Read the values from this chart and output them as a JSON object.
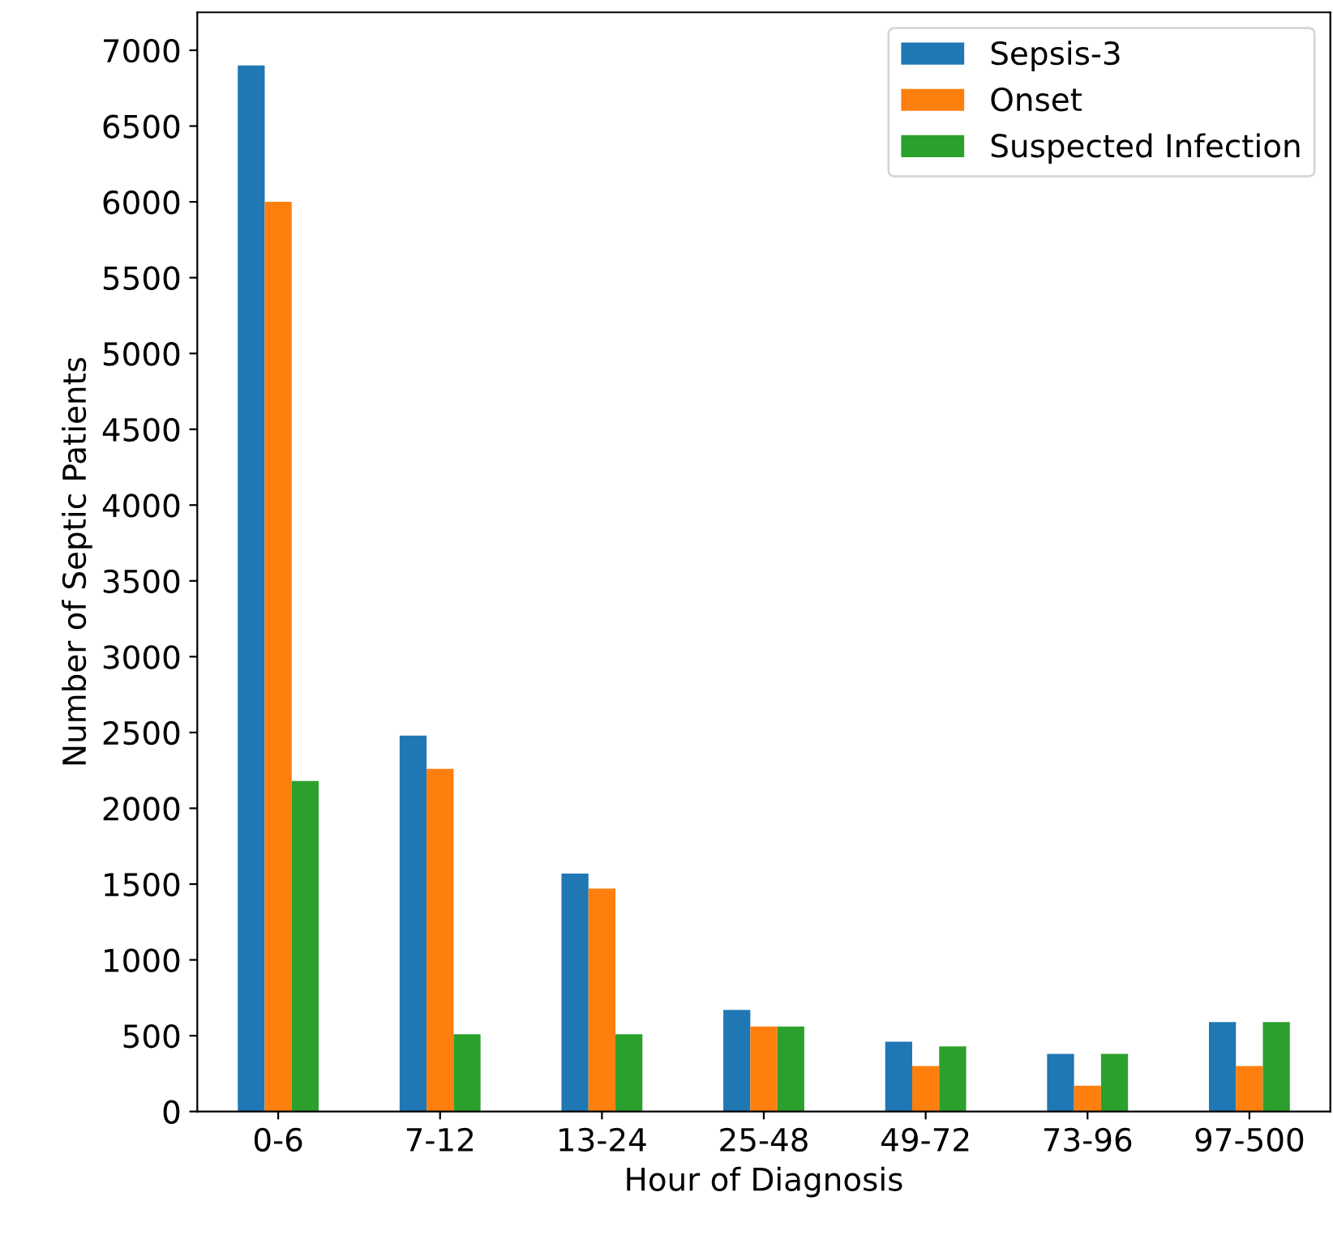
{
  "chart_data": {
    "type": "bar",
    "xlabel": "Hour of Diagnosis",
    "ylabel": "Number of Septic Patients",
    "categories": [
      "0-6",
      "7-12",
      "13-24",
      "25-48",
      "49-72",
      "73-96",
      "97-500"
    ],
    "series": [
      {
        "name": "Sepsis-3",
        "color": "#1f77b4",
        "values": [
          6900,
          2480,
          1570,
          670,
          460,
          380,
          590
        ]
      },
      {
        "name": "Onset",
        "color": "#ff7f0e",
        "values": [
          6000,
          2260,
          1470,
          560,
          300,
          170,
          300
        ]
      },
      {
        "name": "Suspected Infection",
        "color": "#2ca02c",
        "values": [
          2180,
          510,
          510,
          560,
          430,
          380,
          590
        ]
      }
    ],
    "ylim": [
      0,
      7250
    ],
    "yticks": [
      0,
      500,
      1000,
      1500,
      2000,
      2500,
      3000,
      3500,
      4000,
      4500,
      5000,
      5500,
      6000,
      6500,
      7000
    ],
    "legend": "top right",
    "grid": false
  }
}
